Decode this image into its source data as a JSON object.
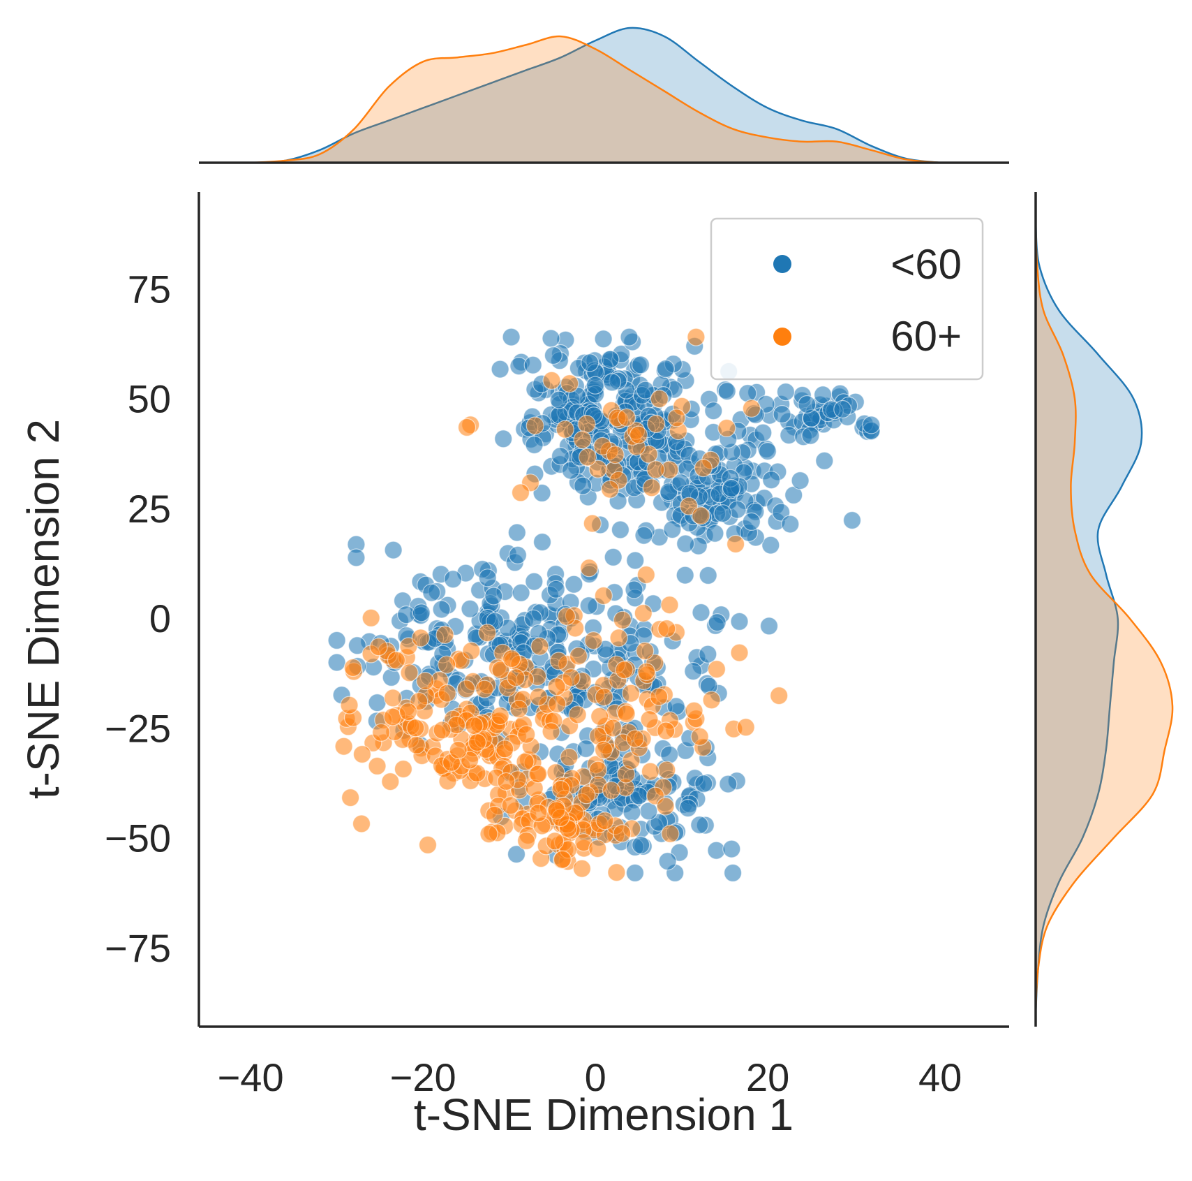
{
  "chart_data": {
    "type": "scatter",
    "title": "",
    "xlabel": "t-SNE Dimension 1",
    "ylabel": "t-SNE Dimension 2",
    "xlim": [
      -46,
      48
    ],
    "ylim": [
      -93,
      97
    ],
    "x_ticks": [
      -40,
      -20,
      0,
      20,
      40
    ],
    "y_ticks": [
      75,
      50,
      25,
      0,
      -25,
      -50,
      -75
    ],
    "x_tick_labels": [
      "−40",
      "−20",
      "0",
      "20",
      "40"
    ],
    "y_tick_labels": [
      "75",
      "50",
      "25",
      "0",
      "−25",
      "−50",
      "−75"
    ],
    "grid": false,
    "legend_position": "top-right",
    "marginals": "kde",
    "series": [
      {
        "name": "<60",
        "color": "#1f77b4",
        "clusters": [
          {
            "center": [
              2,
              45
            ],
            "spread": [
              6,
              9
            ],
            "count": 260
          },
          {
            "center": [
              14,
              28
            ],
            "spread": [
              5,
              6
            ],
            "count": 110
          },
          {
            "center": [
              25,
              46
            ],
            "spread": [
              4,
              3
            ],
            "count": 50
          },
          {
            "center": [
              -5,
              -10
            ],
            "spread": [
              10,
              12
            ],
            "count": 250
          },
          {
            "center": [
              3,
              -40
            ],
            "spread": [
              6,
              8
            ],
            "count": 120
          },
          {
            "center": [
              -18,
              -5
            ],
            "spread": [
              6,
              7
            ],
            "count": 40
          }
        ]
      },
      {
        "name": "60+",
        "color": "#ff7f0e",
        "clusters": [
          {
            "center": [
              -15,
              -25
            ],
            "spread": [
              7,
              10
            ],
            "count": 160
          },
          {
            "center": [
              -3,
              -45
            ],
            "spread": [
              5,
              6
            ],
            "count": 90
          },
          {
            "center": [
              3,
              -15
            ],
            "spread": [
              8,
              12
            ],
            "count": 80
          },
          {
            "center": [
              5,
              38
            ],
            "spread": [
              8,
              10
            ],
            "count": 45
          }
        ]
      }
    ],
    "marginal_x": {
      "x": [
        -40,
        -36,
        -32,
        -28,
        -24,
        -20,
        -16,
        -12,
        -8,
        -4,
        0,
        4,
        8,
        12,
        16,
        20,
        24,
        28,
        32,
        36,
        40
      ],
      "series": [
        {
          "name": "<60",
          "density": [
            0.0,
            0.0005,
            0.003,
            0.007,
            0.01,
            0.013,
            0.016,
            0.019,
            0.022,
            0.025,
            0.029,
            0.032,
            0.03,
            0.024,
            0.018,
            0.013,
            0.01,
            0.008,
            0.004,
            0.001,
            0.0
          ]
        },
        {
          "name": "60+",
          "density": [
            0.0,
            0.0005,
            0.002,
            0.008,
            0.018,
            0.024,
            0.025,
            0.026,
            0.028,
            0.03,
            0.027,
            0.022,
            0.017,
            0.012,
            0.008,
            0.006,
            0.005,
            0.005,
            0.003,
            0.0008,
            0.0
          ]
        }
      ]
    },
    "marginal_y": {
      "y": [
        -90,
        -80,
        -70,
        -60,
        -50,
        -40,
        -30,
        -20,
        -10,
        0,
        10,
        20,
        30,
        40,
        50,
        60,
        70,
        80,
        90
      ],
      "series": [
        {
          "name": "<60",
          "density": [
            0.0,
            0.0003,
            0.001,
            0.003,
            0.006,
            0.008,
            0.009,
            0.0095,
            0.01,
            0.0105,
            0.009,
            0.008,
            0.011,
            0.0135,
            0.0125,
            0.008,
            0.003,
            0.0005,
            0.0
          ]
        },
        {
          "name": "60+",
          "density": [
            0.0,
            0.0003,
            0.0015,
            0.005,
            0.01,
            0.015,
            0.0165,
            0.0175,
            0.016,
            0.012,
            0.007,
            0.005,
            0.0045,
            0.005,
            0.005,
            0.0035,
            0.001,
            0.0002,
            0.0
          ]
        }
      ]
    }
  }
}
